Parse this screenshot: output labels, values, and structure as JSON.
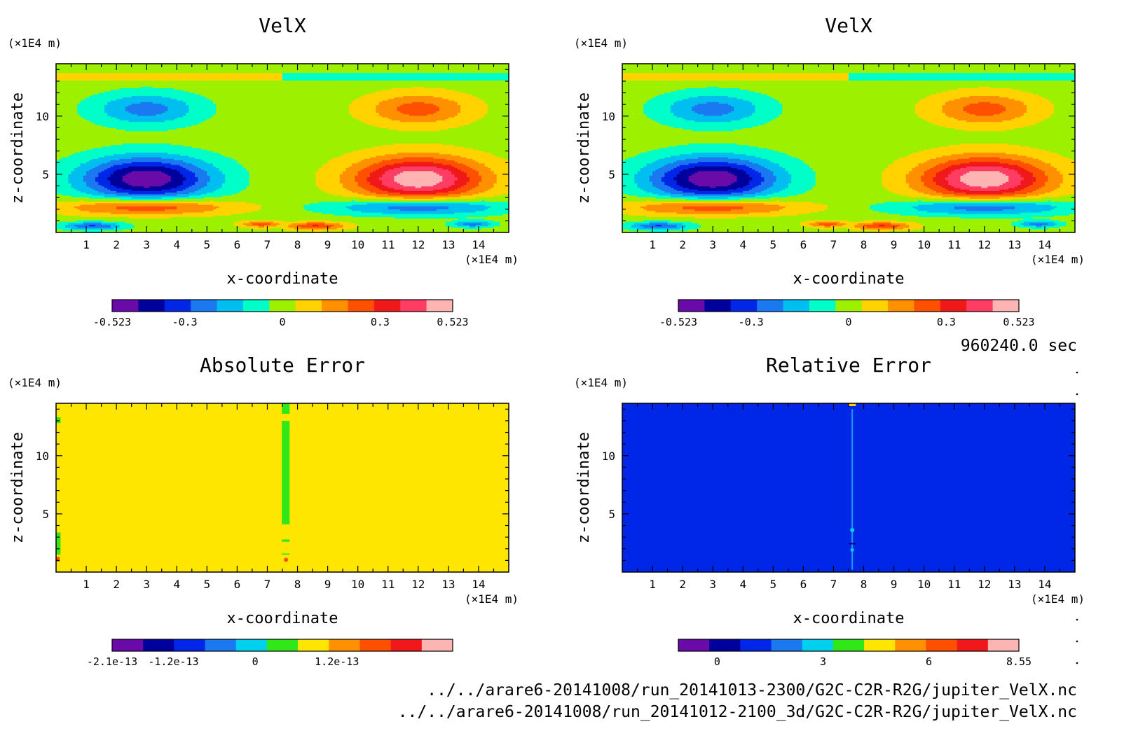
{
  "time_label": "960240.0 sec",
  "files": [
    "../../arare6-20141008/run_20141013-2300/G2C-C2R-R2G/jupiter_VelX.nc",
    "../../arare6-20141008/run_20141012-2100_3d/G2C-C2R-R2G/jupiter_VelX.nc"
  ],
  "chart_data": [
    {
      "type": "heatmap",
      "title": "VelX",
      "xlabel": "x-coordinate",
      "ylabel": "z-coordinate",
      "x_unit": "(×1E4 m)",
      "y_unit": "(×1E4 m)",
      "xlim": [
        0,
        15
      ],
      "ylim": [
        0,
        14.5
      ],
      "xticks": [
        1,
        2,
        3,
        4,
        5,
        6,
        7,
        8,
        9,
        10,
        11,
        12,
        13,
        14
      ],
      "yticks": [
        5,
        10
      ],
      "field": "twin-cell",
      "colorbar": {
        "colors": [
          "#6a0aa8",
          "#00009c",
          "#0026e8",
          "#1a78f0",
          "#00bff0",
          "#00ffc8",
          "#9cf000",
          "#ffd200",
          "#ff9000",
          "#ff5000",
          "#f01818",
          "#ff3c64",
          "#ffb4b4"
        ],
        "tick_labels": [
          "-0.523",
          "-0.3",
          "0",
          "0.3",
          "0.523"
        ],
        "tick_values": [
          -0.523,
          -0.3,
          0,
          0.3,
          0.523
        ],
        "range": [
          -0.523,
          0.523
        ]
      }
    },
    {
      "type": "heatmap",
      "title": "VelX",
      "xlabel": "x-coordinate",
      "ylabel": "z-coordinate",
      "x_unit": "(×1E4 m)",
      "y_unit": "(×1E4 m)",
      "xlim": [
        0,
        15
      ],
      "ylim": [
        0,
        14.5
      ],
      "xticks": [
        1,
        2,
        3,
        4,
        5,
        6,
        7,
        8,
        9,
        10,
        11,
        12,
        13,
        14
      ],
      "yticks": [
        5,
        10
      ],
      "field": "twin-cell",
      "colorbar": {
        "colors": [
          "#6a0aa8",
          "#00009c",
          "#0026e8",
          "#1a78f0",
          "#00bff0",
          "#00ffc8",
          "#9cf000",
          "#ffd200",
          "#ff9000",
          "#ff5000",
          "#f01818",
          "#ff3c64",
          "#ffb4b4"
        ],
        "tick_labels": [
          "-0.523",
          "-0.3",
          "0",
          "0.3",
          "0.523"
        ],
        "tick_values": [
          -0.523,
          -0.3,
          0,
          0.3,
          0.523
        ],
        "range": [
          -0.523,
          0.523
        ]
      }
    },
    {
      "type": "heatmap",
      "title": "Absolute Error",
      "xlabel": "x-coordinate",
      "ylabel": "z-coordinate",
      "x_unit": "(×1E4 m)",
      "y_unit": "(×1E4 m)",
      "xlim": [
        0,
        15
      ],
      "ylim": [
        0,
        14.5
      ],
      "xticks": [
        1,
        2,
        3,
        4,
        5,
        6,
        7,
        8,
        9,
        10,
        11,
        12,
        13,
        14
      ],
      "yticks": [
        5,
        10
      ],
      "field": "abs-error",
      "background_color": "#ffe600",
      "colorbar": {
        "colors": [
          "#6a0aa8",
          "#00009c",
          "#0026e8",
          "#1a78f0",
          "#00d0f0",
          "#30e818",
          "#ffe600",
          "#ff9000",
          "#ff5000",
          "#f01818",
          "#ffb4b4"
        ],
        "tick_labels": [
          "-2.1e-13",
          "-1.2e-13",
          "0",
          "1.2e-13"
        ],
        "tick_values": [
          -2.1e-13,
          -1.2e-13,
          0,
          1.2e-13
        ],
        "range": [
          -2.1e-13,
          2.9e-13
        ]
      }
    },
    {
      "type": "heatmap",
      "title": "Relative Error",
      "xlabel": "x-coordinate",
      "ylabel": "z-coordinate",
      "x_unit": "(×1E4 m)",
      "y_unit": "(×1E4 m)",
      "xlim": [
        0,
        15
      ],
      "ylim": [
        0,
        14.5
      ],
      "xticks": [
        1,
        2,
        3,
        4,
        5,
        6,
        7,
        8,
        9,
        10,
        11,
        12,
        13,
        14
      ],
      "yticks": [
        5,
        10
      ],
      "field": "rel-error",
      "background_color": "#0026e8",
      "colorbar": {
        "colors": [
          "#6a0aa8",
          "#00009c",
          "#0026e8",
          "#1a78f0",
          "#00d0f0",
          "#30e818",
          "#ffe600",
          "#ff9000",
          "#ff5000",
          "#f01818",
          "#ffb4b4"
        ],
        "tick_labels": [
          "0",
          "3",
          "6",
          "8.55"
        ],
        "tick_values": [
          0,
          3,
          6,
          8.55
        ],
        "range": [
          -1.1,
          8.55
        ]
      }
    }
  ]
}
